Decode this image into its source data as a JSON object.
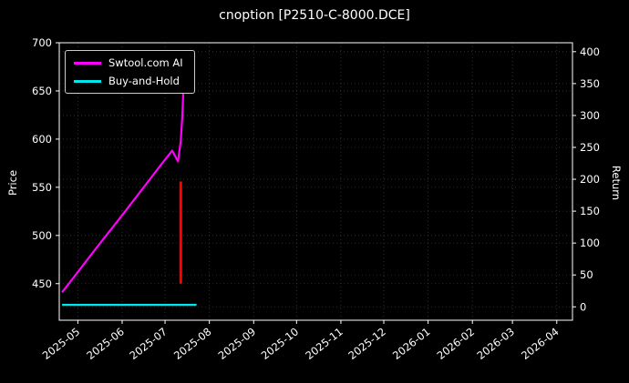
{
  "chart_data": {
    "type": "line",
    "title": "cnoption [P2510-C-8000.DCE]",
    "xlabel": "",
    "left_axis": {
      "label": "Price",
      "ticks": [
        450,
        500,
        550,
        600,
        650,
        700
      ],
      "range": [
        412,
        700
      ]
    },
    "right_axis": {
      "label": "Return",
      "ticks": [
        0,
        50,
        100,
        150,
        200,
        250,
        300,
        350,
        400
      ],
      "range": [
        -21,
        414
      ]
    },
    "x_axis": {
      "ticks": [
        "2025-05",
        "2025-06",
        "2025-07",
        "2025-08",
        "2025-09",
        "2025-10",
        "2025-11",
        "2025-12",
        "2026-01",
        "2026-02",
        "2026-03",
        "2026-04"
      ],
      "range": [
        "2025-04-18",
        "2026-04-12"
      ]
    },
    "grid": true,
    "legend_position": "upper-left",
    "colors": {
      "background": "#000000",
      "text": "#ffffff",
      "grid": "#3b3b3b",
      "spine": "#ffffff"
    },
    "series": [
      {
        "name": "Swtool.com AI",
        "color": "#ff00ff",
        "axis": "left",
        "width": 2.2,
        "in_legend": true,
        "points": [
          [
            "2025-04-20",
            441
          ],
          [
            "2025-05-01",
            462
          ],
          [
            "2025-05-15",
            489
          ],
          [
            "2025-06-01",
            521
          ],
          [
            "2025-06-15",
            548
          ],
          [
            "2025-06-28",
            573
          ],
          [
            "2025-07-06",
            588
          ],
          [
            "2025-07-10",
            577
          ],
          [
            "2025-07-12",
            598
          ],
          [
            "2025-07-13",
            622
          ],
          [
            "2025-07-14",
            657
          ],
          [
            "2025-07-15",
            650
          ],
          [
            "2025-07-16",
            656
          ]
        ]
      },
      {
        "name": "Buy-and-Hold",
        "color": "#00e5ee",
        "axis": "left",
        "width": 2.2,
        "in_legend": true,
        "points": [
          [
            "2025-04-20",
            428
          ],
          [
            "2025-07-23",
            428
          ]
        ]
      },
      {
        "name": "signal-marker",
        "color": "#ff0000",
        "axis": "left",
        "width": 3,
        "in_legend": false,
        "points": [
          [
            "2025-07-12",
            450
          ],
          [
            "2025-07-12",
            556
          ]
        ]
      }
    ]
  }
}
